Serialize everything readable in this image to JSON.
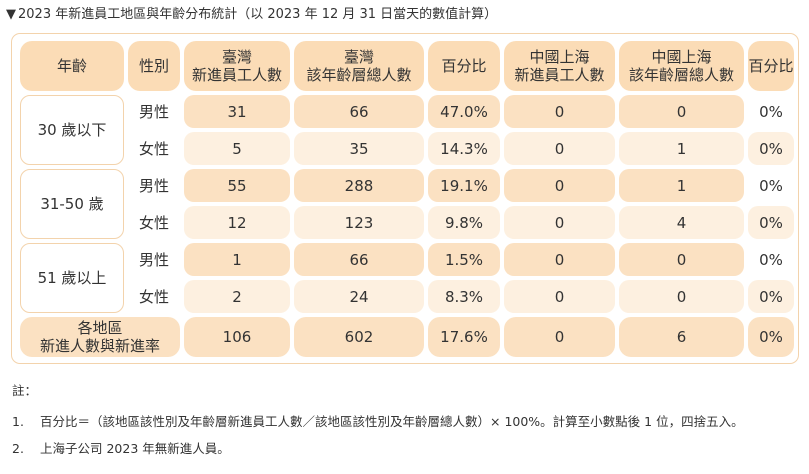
{
  "title": "2023 年新進員工地區與年齡分布統計（以 2023 年 12 月 31 日當天的數值計算）",
  "title_marker": "▼",
  "headers": {
    "age": "年齡",
    "gender": "性別",
    "tw_new_line1": "臺灣",
    "tw_new_line2": "新進員工人數",
    "tw_total_line1": "臺灣",
    "tw_total_line2": "該年齡層總人數",
    "tw_pct": "百分比",
    "sh_new_line1": "中國上海",
    "sh_new_line2": "新進員工人數",
    "sh_total_line1": "中國上海",
    "sh_total_line2": "該年齡層總人數",
    "sh_pct": "百分比"
  },
  "groups": [
    {
      "age": "30 歲以下",
      "rows": [
        {
          "gender": "男性",
          "tw_new": "31",
          "tw_total": "66",
          "tw_pct": "47.0%",
          "sh_new": "0",
          "sh_total": "0",
          "sh_pct": "0%"
        },
        {
          "gender": "女性",
          "tw_new": "5",
          "tw_total": "35",
          "tw_pct": "14.3%",
          "sh_new": "0",
          "sh_total": "1",
          "sh_pct": "0%"
        }
      ]
    },
    {
      "age": "31-50 歲",
      "rows": [
        {
          "gender": "男性",
          "tw_new": "55",
          "tw_total": "288",
          "tw_pct": "19.1%",
          "sh_new": "0",
          "sh_total": "1",
          "sh_pct": "0%"
        },
        {
          "gender": "女性",
          "tw_new": "12",
          "tw_total": "123",
          "tw_pct": "9.8%",
          "sh_new": "0",
          "sh_total": "4",
          "sh_pct": "0%"
        }
      ]
    },
    {
      "age": "51 歲以上",
      "rows": [
        {
          "gender": "男性",
          "tw_new": "1",
          "tw_total": "66",
          "tw_pct": "1.5%",
          "sh_new": "0",
          "sh_total": "0",
          "sh_pct": "0%"
        },
        {
          "gender": "女性",
          "tw_new": "2",
          "tw_total": "24",
          "tw_pct": "8.3%",
          "sh_new": "0",
          "sh_total": "0",
          "sh_pct": "0%"
        }
      ]
    }
  ],
  "summary": {
    "label_line1": "各地區",
    "label_line2": "新進人數與新進率",
    "tw_new": "106",
    "tw_total": "602",
    "tw_pct": "17.6%",
    "sh_new": "0",
    "sh_total": "6",
    "sh_pct": "0%"
  },
  "notes": {
    "label": "註：",
    "items": [
      {
        "num": "1.",
        "text": "百分比＝（該地區該性別及年齡層新進員工人數／該地區該性別及年齡層總人數）× 100%。計算至小數點後 1 位，四捨五入。"
      },
      {
        "num": "2.",
        "text": "上海子公司 2023 年無新進人員。"
      }
    ]
  }
}
